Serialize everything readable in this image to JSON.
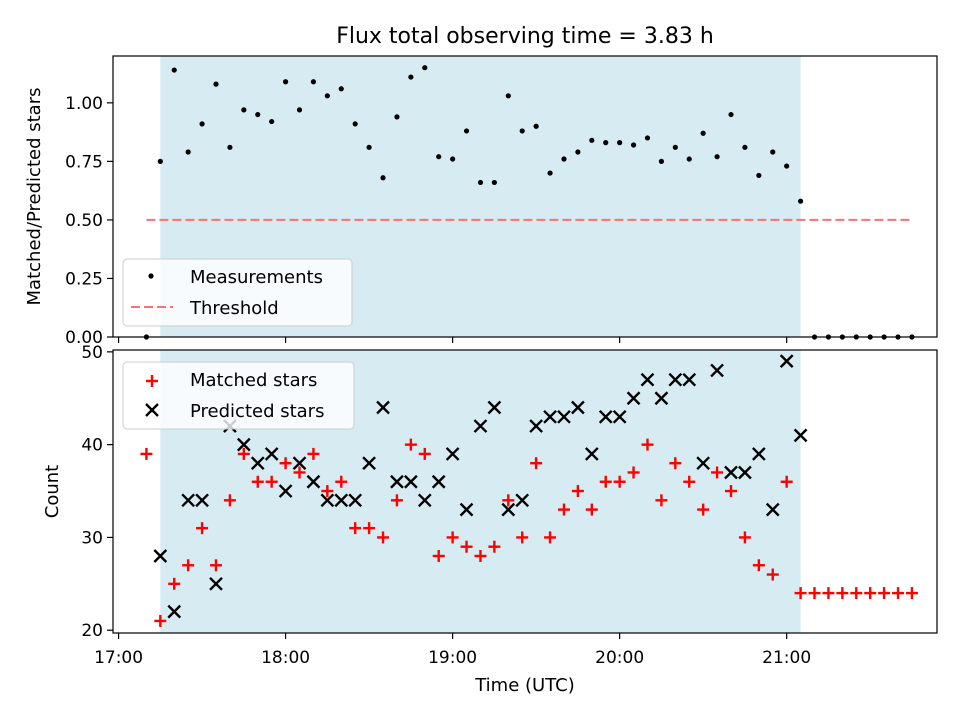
{
  "title": "Flux total observing time = 3.83 h",
  "chart_data": [
    {
      "type": "scatter",
      "ylabel": "Matched/Predicted stars",
      "ylim": [
        0.0,
        1.2
      ],
      "yticks": [
        "0.00",
        "0.25",
        "0.50",
        "0.75",
        "1.00"
      ],
      "legend": {
        "placement": "lower-left",
        "entries": [
          "Measurements",
          "Threshold"
        ]
      },
      "threshold": {
        "name": "Threshold",
        "value": 0.5,
        "x_start": "17:10",
        "x_end": "21:45",
        "color": "#ff7070"
      },
      "series": [
        {
          "name": "Measurements",
          "color": "#000000",
          "x": [
            "17:10",
            "17:15",
            "17:20",
            "17:25",
            "17:30",
            "17:35",
            "17:40",
            "17:45",
            "17:50",
            "17:55",
            "18:00",
            "18:05",
            "18:10",
            "18:15",
            "18:20",
            "18:25",
            "18:30",
            "18:35",
            "18:40",
            "18:45",
            "18:50",
            "18:55",
            "19:00",
            "19:05",
            "19:10",
            "19:15",
            "19:20",
            "19:25",
            "19:30",
            "19:35",
            "19:40",
            "19:45",
            "19:50",
            "19:55",
            "20:00",
            "20:05",
            "20:10",
            "20:15",
            "20:20",
            "20:25",
            "20:30",
            "20:35",
            "20:40",
            "20:45",
            "20:50",
            "20:55",
            "21:00",
            "21:05",
            "21:10",
            "21:15",
            "21:20",
            "21:25",
            "21:30",
            "21:35",
            "21:40",
            "21:45"
          ],
          "y": [
            0.0,
            0.75,
            1.14,
            0.79,
            0.91,
            1.08,
            0.81,
            0.97,
            0.95,
            0.92,
            1.09,
            0.97,
            1.09,
            1.03,
            1.06,
            0.91,
            0.81,
            0.68,
            0.94,
            1.11,
            1.15,
            0.77,
            0.76,
            0.88,
            0.66,
            0.66,
            1.03,
            0.88,
            0.9,
            0.7,
            0.76,
            0.79,
            0.84,
            0.83,
            0.83,
            0.82,
            0.85,
            0.75,
            0.81,
            0.76,
            0.87,
            0.77,
            0.95,
            0.81,
            0.69,
            0.79,
            0.73,
            0.58,
            0.0,
            0.0,
            0.0,
            0.0,
            0.0,
            0.0,
            0.0,
            0.0
          ]
        }
      ]
    },
    {
      "type": "scatter",
      "xlabel": "Time (UTC)",
      "ylabel": "Count",
      "ylim": [
        19.7,
        50.2
      ],
      "yticks": [
        "20",
        "30",
        "40",
        "50"
      ],
      "xlim": [
        "16:58",
        "21:54"
      ],
      "xticks": [
        "17:00",
        "18:00",
        "19:00",
        "20:00",
        "21:00"
      ],
      "legend": {
        "placement": "upper-left",
        "entries": [
          "Matched stars",
          "Predicted stars"
        ]
      },
      "series": [
        {
          "name": "Matched stars",
          "marker": "plus",
          "color": "#ff0000",
          "x": [
            "17:10",
            "17:15",
            "17:20",
            "17:25",
            "17:30",
            "17:35",
            "17:40",
            "17:45",
            "17:50",
            "17:55",
            "18:00",
            "18:05",
            "18:10",
            "18:15",
            "18:20",
            "18:25",
            "18:30",
            "18:35",
            "18:40",
            "18:45",
            "18:50",
            "18:55",
            "19:00",
            "19:05",
            "19:10",
            "19:15",
            "19:20",
            "19:25",
            "19:30",
            "19:35",
            "19:40",
            "19:45",
            "19:50",
            "19:55",
            "20:00",
            "20:05",
            "20:10",
            "20:15",
            "20:20",
            "20:25",
            "20:30",
            "20:35",
            "20:40",
            "20:45",
            "20:50",
            "20:55",
            "21:00",
            "21:05",
            "21:10",
            "21:15",
            "21:20",
            "21:25",
            "21:30",
            "21:35",
            "21:40",
            "21:45"
          ],
          "y": [
            39,
            21,
            25,
            27,
            31,
            27,
            34,
            39,
            36,
            36,
            38,
            37,
            39,
            35,
            36,
            31,
            31,
            30,
            34,
            40,
            39,
            28,
            30,
            29,
            28,
            29,
            34,
            30,
            38,
            30,
            33,
            35,
            33,
            36,
            36,
            37,
            40,
            34,
            38,
            36,
            33,
            37,
            35,
            30,
            27,
            26,
            36,
            24,
            24,
            24,
            24,
            24,
            24,
            24,
            24,
            24
          ]
        },
        {
          "name": "Predicted stars",
          "marker": "x",
          "color": "#000000",
          "x": [
            "17:15",
            "17:20",
            "17:25",
            "17:30",
            "17:35",
            "17:40",
            "17:45",
            "17:50",
            "17:55",
            "18:00",
            "18:05",
            "18:10",
            "18:15",
            "18:20",
            "18:25",
            "18:30",
            "18:35",
            "18:40",
            "18:45",
            "18:50",
            "18:55",
            "19:00",
            "19:05",
            "19:10",
            "19:15",
            "19:20",
            "19:25",
            "19:30",
            "19:35",
            "19:40",
            "19:45",
            "19:50",
            "19:55",
            "20:00",
            "20:05",
            "20:10",
            "20:15",
            "20:20",
            "20:25",
            "20:30",
            "20:35",
            "20:40",
            "20:45",
            "20:50",
            "20:55",
            "21:00",
            "21:05"
          ],
          "y": [
            28,
            22,
            34,
            34,
            25,
            42,
            40,
            38,
            39,
            35,
            38,
            36,
            34,
            34,
            34,
            38,
            44,
            36,
            36,
            34,
            36,
            39,
            33,
            42,
            44,
            33,
            34,
            42,
            43,
            43,
            44,
            39,
            43,
            43,
            45,
            47,
            45,
            47,
            47,
            38,
            48,
            37,
            37,
            39,
            33,
            49,
            41
          ]
        }
      ]
    }
  ],
  "shaded_region": {
    "x_start": "17:15",
    "x_end": "21:05",
    "color": "#add8e6"
  }
}
